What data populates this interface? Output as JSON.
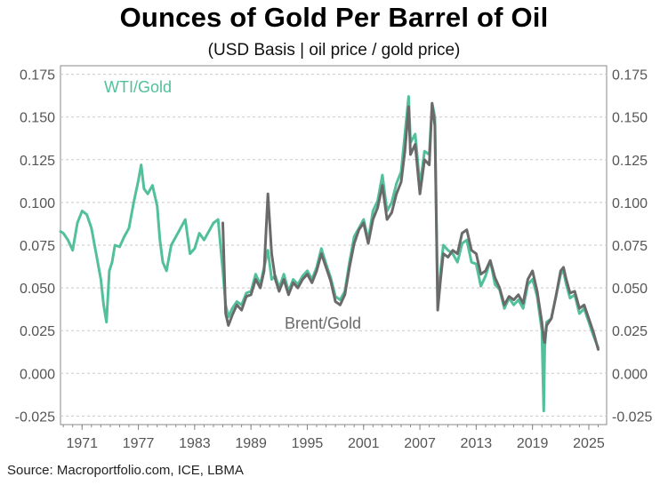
{
  "title": "Ounces of Gold Per Barrel of Oil",
  "subtitle": "(USD Basis | oil price / gold price)",
  "source": "Source: Macroportfolio.com, ICE, LBMA",
  "colors": {
    "wti": "#52c09a",
    "brent": "#6a6a6a",
    "grid": "#c8c8c8",
    "axis": "#888888"
  },
  "chart_data": {
    "type": "line",
    "title": "Ounces of Gold Per Barrel of Oil",
    "subtitle": "(USD Basis | oil price / gold price)",
    "xlabel": "",
    "ylabel": "",
    "xlim": [
      1968.7,
      2026.9
    ],
    "ylim": [
      -0.03,
      0.18
    ],
    "grid": true,
    "x_ticks": [
      1971,
      1977,
      1983,
      1989,
      1995,
      2001,
      2007,
      2013,
      2019,
      2025
    ],
    "y_ticks": [
      -0.025,
      0.0,
      0.025,
      0.05,
      0.075,
      0.1,
      0.125,
      0.15,
      0.175
    ],
    "y_tick_labels": [
      "-0.025",
      "0.000",
      "0.025",
      "0.050",
      "0.075",
      "0.100",
      "0.125",
      "0.150",
      "0.175"
    ],
    "annotations": [
      {
        "text": "WTI/Gold",
        "series": "WTI/Gold",
        "position": "top-left"
      },
      {
        "text": "Brent/Gold",
        "series": "Brent/Gold",
        "position": "bottom-center"
      }
    ],
    "series": [
      {
        "name": "WTI/Gold",
        "x": [
          1968.7,
          1969.0,
          1969.5,
          1970.0,
          1970.5,
          1971.0,
          1971.5,
          1972.0,
          1972.5,
          1973.0,
          1973.3,
          1973.6,
          1973.9,
          1974.2,
          1974.5,
          1975.0,
          1975.5,
          1976.0,
          1976.5,
          1977.0,
          1977.3,
          1977.6,
          1978.0,
          1978.5,
          1979.0,
          1979.3,
          1979.6,
          1980.0,
          1980.5,
          1981.0,
          1981.5,
          1982.0,
          1982.5,
          1983.0,
          1983.5,
          1984.0,
          1984.5,
          1985.0,
          1985.5,
          1986.0,
          1986.3,
          1986.6,
          1987.0,
          1987.5,
          1988.0,
          1988.5,
          1989.0,
          1989.5,
          1990.0,
          1990.4,
          1990.8,
          1991.2,
          1991.6,
          1992.0,
          1992.5,
          1993.0,
          1993.5,
          1994.0,
          1994.5,
          1995.0,
          1995.5,
          1996.0,
          1996.5,
          1997.0,
          1997.5,
          1998.0,
          1998.5,
          1999.0,
          1999.5,
          2000.0,
          2000.5,
          2001.0,
          2001.5,
          2002.0,
          2002.5,
          2003.0,
          2003.5,
          2004.0,
          2004.5,
          2005.0,
          2005.4,
          2005.8,
          2006.0,
          2006.5,
          2007.0,
          2007.5,
          2008.0,
          2008.3,
          2008.6,
          2008.9,
          2009.2,
          2009.5,
          2010.0,
          2010.5,
          2011.0,
          2011.5,
          2012.0,
          2012.5,
          2013.0,
          2013.5,
          2014.0,
          2014.5,
          2015.0,
          2015.5,
          2016.0,
          2016.5,
          2017.0,
          2017.5,
          2018.0,
          2018.5,
          2019.0,
          2019.5,
          2020.0,
          2020.2,
          2020.3,
          2020.5,
          2021.0,
          2021.5,
          2022.0,
          2022.3,
          2022.6,
          2023.0,
          2023.5,
          2024.0,
          2024.5,
          2025.0,
          2025.5,
          2026.0
        ],
        "values": [
          0.083,
          0.082,
          0.078,
          0.072,
          0.088,
          0.095,
          0.093,
          0.085,
          0.07,
          0.055,
          0.04,
          0.03,
          0.06,
          0.065,
          0.075,
          0.074,
          0.08,
          0.085,
          0.1,
          0.113,
          0.122,
          0.108,
          0.105,
          0.11,
          0.098,
          0.078,
          0.065,
          0.06,
          0.075,
          0.08,
          0.085,
          0.09,
          0.07,
          0.073,
          0.082,
          0.078,
          0.083,
          0.088,
          0.09,
          0.06,
          0.04,
          0.033,
          0.038,
          0.042,
          0.04,
          0.047,
          0.048,
          0.058,
          0.052,
          0.062,
          0.072,
          0.055,
          0.057,
          0.05,
          0.058,
          0.048,
          0.055,
          0.052,
          0.057,
          0.06,
          0.055,
          0.062,
          0.073,
          0.064,
          0.056,
          0.045,
          0.043,
          0.048,
          0.065,
          0.08,
          0.085,
          0.09,
          0.078,
          0.095,
          0.101,
          0.116,
          0.095,
          0.1,
          0.111,
          0.118,
          0.14,
          0.162,
          0.135,
          0.14,
          0.11,
          0.13,
          0.128,
          0.158,
          0.15,
          0.04,
          0.06,
          0.075,
          0.072,
          0.07,
          0.065,
          0.076,
          0.078,
          0.065,
          0.064,
          0.051,
          0.057,
          0.066,
          0.052,
          0.049,
          0.038,
          0.044,
          0.04,
          0.043,
          0.038,
          0.052,
          0.055,
          0.045,
          0.025,
          -0.022,
          0.015,
          0.03,
          0.032,
          0.045,
          0.058,
          0.06,
          0.052,
          0.044,
          0.046,
          0.035,
          0.038,
          0.03,
          0.022,
          0.015
        ]
      },
      {
        "name": "Brent/Gold",
        "x": [
          1986.0,
          1986.3,
          1986.6,
          1987.0,
          1987.5,
          1988.0,
          1988.5,
          1989.0,
          1989.5,
          1990.0,
          1990.4,
          1990.8,
          1991.2,
          1991.6,
          1992.0,
          1992.5,
          1993.0,
          1993.5,
          1994.0,
          1994.5,
          1995.0,
          1995.5,
          1996.0,
          1996.5,
          1997.0,
          1997.5,
          1998.0,
          1998.5,
          1999.0,
          1999.5,
          2000.0,
          2000.5,
          2001.0,
          2001.5,
          2002.0,
          2002.5,
          2003.0,
          2003.5,
          2004.0,
          2004.5,
          2005.0,
          2005.4,
          2005.8,
          2006.0,
          2006.5,
          2007.0,
          2007.5,
          2008.0,
          2008.3,
          2008.6,
          2008.9,
          2009.2,
          2009.5,
          2010.0,
          2010.5,
          2011.0,
          2011.5,
          2012.0,
          2012.5,
          2013.0,
          2013.5,
          2014.0,
          2014.5,
          2015.0,
          2015.5,
          2016.0,
          2016.5,
          2017.0,
          2017.5,
          2018.0,
          2018.5,
          2019.0,
          2019.5,
          2020.0,
          2020.2,
          2020.3,
          2020.5,
          2021.0,
          2021.5,
          2022.0,
          2022.3,
          2022.6,
          2023.0,
          2023.5,
          2024.0,
          2024.5,
          2025.0,
          2025.5,
          2026.0
        ],
        "values": [
          0.088,
          0.035,
          0.028,
          0.034,
          0.04,
          0.037,
          0.045,
          0.046,
          0.055,
          0.05,
          0.06,
          0.105,
          0.07,
          0.055,
          0.048,
          0.055,
          0.046,
          0.053,
          0.05,
          0.055,
          0.058,
          0.053,
          0.06,
          0.07,
          0.062,
          0.054,
          0.042,
          0.04,
          0.046,
          0.062,
          0.076,
          0.084,
          0.088,
          0.076,
          0.09,
          0.097,
          0.11,
          0.09,
          0.094,
          0.105,
          0.112,
          0.13,
          0.156,
          0.128,
          0.134,
          0.105,
          0.125,
          0.122,
          0.158,
          0.145,
          0.037,
          0.055,
          0.07,
          0.068,
          0.072,
          0.07,
          0.082,
          0.084,
          0.072,
          0.07,
          0.058,
          0.06,
          0.066,
          0.056,
          0.05,
          0.04,
          0.045,
          0.043,
          0.046,
          0.041,
          0.055,
          0.06,
          0.048,
          0.03,
          0.02,
          0.018,
          0.028,
          0.032,
          0.045,
          0.06,
          0.062,
          0.055,
          0.047,
          0.048,
          0.038,
          0.04,
          0.032,
          0.024,
          0.014
        ]
      }
    ]
  }
}
